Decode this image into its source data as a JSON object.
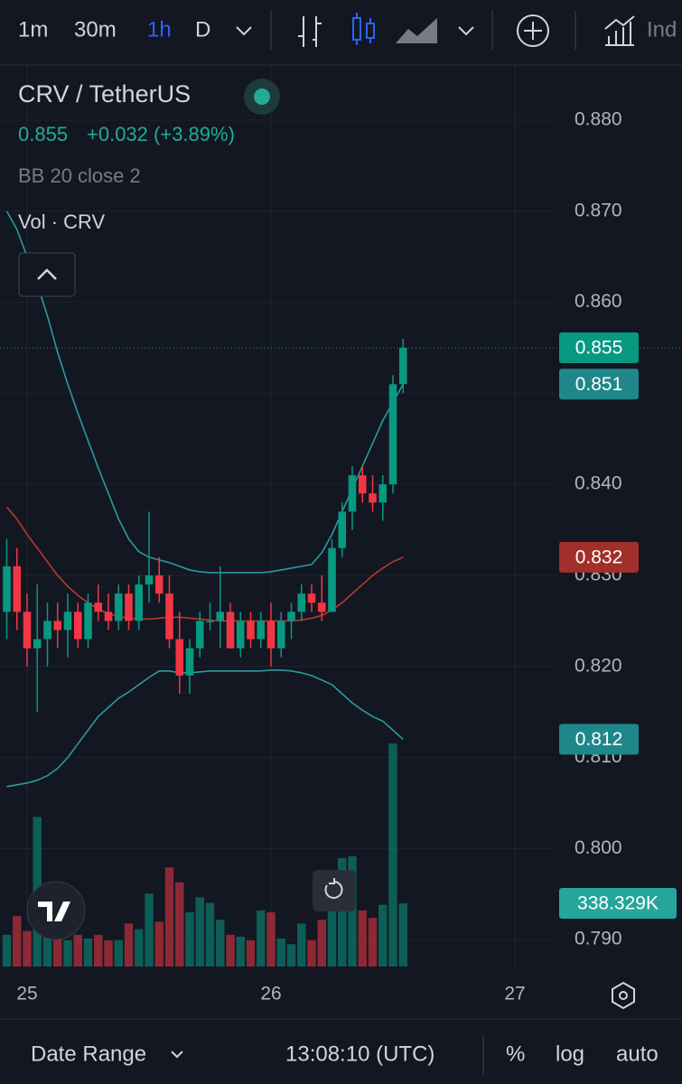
{
  "toolbar": {
    "intervals": [
      "1m",
      "30m",
      "1h",
      "D"
    ],
    "active_interval": 2,
    "indicators": "Ind"
  },
  "chart_data": {
    "type": "candlestick",
    "title": "CRV / TetherUS",
    "last": 0.855,
    "change": "+0.032 (+3.89%)",
    "x": [
      -2,
      -1,
      0,
      1,
      2,
      3,
      4,
      5,
      6,
      7,
      8,
      9,
      10,
      11,
      12,
      13,
      14,
      15,
      16,
      17,
      18,
      19,
      20,
      21,
      22,
      23,
      24,
      25,
      26,
      27,
      28,
      29,
      30,
      31,
      32,
      33,
      34,
      35,
      36,
      37
    ],
    "open": [
      0.826,
      0.831,
      0.826,
      0.822,
      0.823,
      0.825,
      0.824,
      0.826,
      0.823,
      0.827,
      0.826,
      0.825,
      0.828,
      0.825,
      0.829,
      0.83,
      0.828,
      0.823,
      0.819,
      0.822,
      0.825,
      0.825,
      0.826,
      0.822,
      0.825,
      0.823,
      0.825,
      0.822,
      0.825,
      0.826,
      0.828,
      0.827,
      0.826,
      0.833,
      0.837,
      0.841,
      0.839,
      0.838,
      0.84,
      0.851
    ],
    "high": [
      0.834,
      0.833,
      0.828,
      0.829,
      0.827,
      0.827,
      0.828,
      0.827,
      0.828,
      0.829,
      0.828,
      0.829,
      0.829,
      0.83,
      0.837,
      0.832,
      0.83,
      0.826,
      0.823,
      0.826,
      0.827,
      0.831,
      0.827,
      0.826,
      0.826,
      0.826,
      0.827,
      0.826,
      0.827,
      0.829,
      0.829,
      0.83,
      0.834,
      0.838,
      0.842,
      0.842,
      0.841,
      0.841,
      0.852,
      0.856
    ],
    "low": [
      0.823,
      0.824,
      0.82,
      0.815,
      0.82,
      0.822,
      0.821,
      0.822,
      0.822,
      0.825,
      0.824,
      0.824,
      0.824,
      0.824,
      0.827,
      0.827,
      0.822,
      0.817,
      0.817,
      0.821,
      0.824,
      0.822,
      0.822,
      0.821,
      0.822,
      0.822,
      0.82,
      0.821,
      0.823,
      0.825,
      0.826,
      0.825,
      0.826,
      0.832,
      0.835,
      0.838,
      0.837,
      0.836,
      0.839,
      0.85
    ],
    "close": [
      0.831,
      0.826,
      0.822,
      0.823,
      0.825,
      0.824,
      0.826,
      0.823,
      0.827,
      0.826,
      0.825,
      0.828,
      0.825,
      0.829,
      0.83,
      0.828,
      0.823,
      0.819,
      0.822,
      0.825,
      0.825,
      0.826,
      0.822,
      0.825,
      0.823,
      0.825,
      0.822,
      0.825,
      0.826,
      0.828,
      0.827,
      0.826,
      0.833,
      0.837,
      0.841,
      0.839,
      0.838,
      0.84,
      0.851,
      0.855
    ],
    "up_color": "#089981",
    "down_color": "#f23645",
    "bb": {
      "name": "BB 20 close 2",
      "band_color": "#2a9a9c",
      "basis_color": "#b5392f",
      "upper": [
        0.87,
        0.868,
        0.865,
        0.862,
        0.8585,
        0.8545,
        0.851,
        0.8478,
        0.8448,
        0.8418,
        0.839,
        0.8362,
        0.834,
        0.8326,
        0.832,
        0.8317,
        0.8314,
        0.831,
        0.8306,
        0.8304,
        0.8303,
        0.8303,
        0.8303,
        0.8303,
        0.8303,
        0.8303,
        0.8304,
        0.8306,
        0.8308,
        0.831,
        0.8312,
        0.8325,
        0.8345,
        0.837,
        0.8395,
        0.842,
        0.8445,
        0.847,
        0.849,
        0.851
      ],
      "basis": [
        0.8375,
        0.8362,
        0.8345,
        0.833,
        0.8315,
        0.83,
        0.8288,
        0.8278,
        0.827,
        0.8263,
        0.8258,
        0.8255,
        0.8253,
        0.8252,
        0.8252,
        0.8253,
        0.8254,
        0.8254,
        0.8253,
        0.8252,
        0.8251,
        0.825,
        0.825,
        0.825,
        0.825,
        0.825,
        0.825,
        0.825,
        0.825,
        0.8251,
        0.8253,
        0.8256,
        0.8262,
        0.827,
        0.828,
        0.829,
        0.83,
        0.8308,
        0.8315,
        0.832
      ],
      "lower": [
        0.8068,
        0.807,
        0.8072,
        0.8075,
        0.808,
        0.8088,
        0.81,
        0.8115,
        0.813,
        0.8145,
        0.8155,
        0.8165,
        0.8172,
        0.818,
        0.8188,
        0.8195,
        0.8195,
        0.8193,
        0.8193,
        0.8194,
        0.8195,
        0.8195,
        0.8195,
        0.8195,
        0.8195,
        0.8195,
        0.8196,
        0.8196,
        0.8195,
        0.8193,
        0.819,
        0.8185,
        0.818,
        0.817,
        0.816,
        0.8152,
        0.8145,
        0.814,
        0.813,
        0.812
      ]
    },
    "volume": {
      "name": "Vol · CRV",
      "values": [
        170000,
        270000,
        190000,
        800000,
        170000,
        170000,
        140000,
        170000,
        150000,
        170000,
        140000,
        140000,
        230000,
        200000,
        390000,
        240000,
        530000,
        450000,
        290000,
        370000,
        340000,
        250000,
        170000,
        160000,
        140000,
        300000,
        290000,
        150000,
        120000,
        230000,
        140000,
        250000,
        400000,
        580000,
        590000,
        300000,
        260000,
        330000,
        1193000,
        338329
      ]
    },
    "xlim": [
      -2.6667,
      52
    ],
    "xticks": [
      {
        "value": 0,
        "label": "25"
      },
      {
        "value": 24,
        "label": "26"
      },
      {
        "value": 48,
        "label": "27"
      }
    ],
    "ylim": [
      0.78704,
      0.88605
    ],
    "yticks": [
      {
        "value": 0.79,
        "label": "0.790"
      },
      {
        "value": 0.8,
        "label": "0.800"
      },
      {
        "value": 0.81,
        "label": "0.810"
      },
      {
        "value": 0.82,
        "label": "0.820"
      },
      {
        "value": 0.83,
        "label": "0.830"
      },
      {
        "value": 0.84,
        "label": "0.840"
      },
      {
        "value": 0.85,
        "label": "0.850"
      },
      {
        "value": 0.86,
        "label": "0.860"
      },
      {
        "value": 0.87,
        "label": "0.870"
      },
      {
        "value": 0.88,
        "label": "0.880"
      }
    ],
    "grid": true,
    "price_tags": [
      {
        "value": 0.855,
        "label": "0.855",
        "color": "#089981"
      },
      {
        "value": 0.851,
        "label": "0.851",
        "color": "#1f878a"
      },
      {
        "value": 0.832,
        "label": "0.832",
        "color": "#a1302b"
      },
      {
        "value": 0.812,
        "label": "0.812",
        "color": "#1f878a"
      }
    ],
    "volume_tag": {
      "value": 338329,
      "label": "338.329K",
      "color": "#26a69a"
    }
  },
  "footer": {
    "date_range": "Date Range",
    "time": "13:08:10 (UTC)",
    "options": [
      "%",
      "log",
      "auto"
    ]
  }
}
